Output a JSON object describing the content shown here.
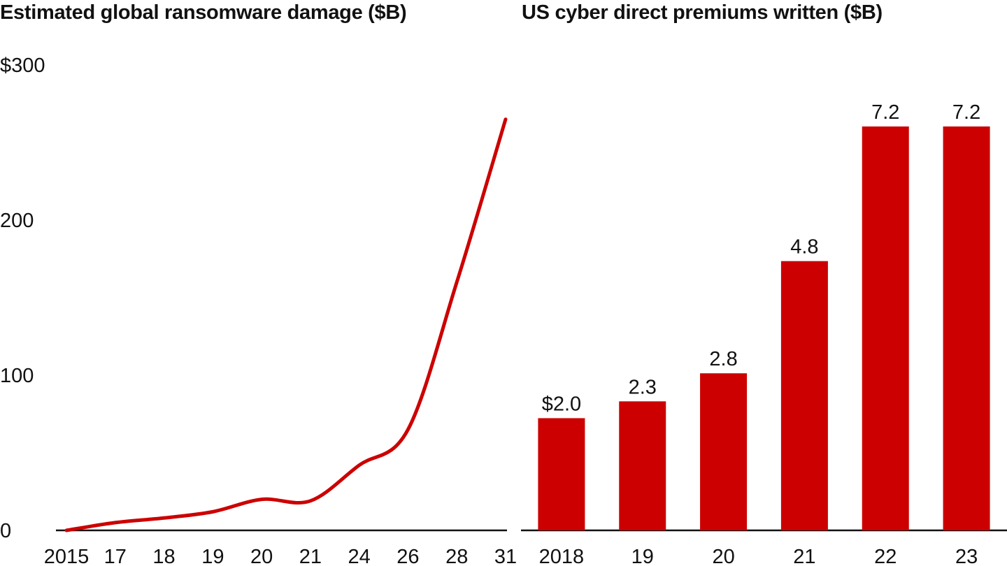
{
  "chart_data": [
    {
      "type": "line",
      "title": "Estimated global ransomware damage ($B)",
      "x": [
        "2015",
        "17",
        "18",
        "19",
        "20",
        "21",
        "24",
        "26",
        "28",
        "31"
      ],
      "values": [
        0,
        5,
        8,
        12,
        20,
        19,
        42,
        65,
        160,
        265
      ],
      "ylim": [
        0,
        300
      ],
      "yticks": [
        {
          "value": 0,
          "label": "0"
        },
        {
          "value": 100,
          "label": "100"
        },
        {
          "value": 200,
          "label": "200"
        },
        {
          "value": 300,
          "label": "$300"
        }
      ],
      "grid": false,
      "color": "#cc0000"
    },
    {
      "type": "bar",
      "title": "US cyber direct premiums written ($B)",
      "categories": [
        "2018",
        "19",
        "20",
        "21",
        "22",
        "23"
      ],
      "values": [
        2.0,
        2.3,
        2.8,
        4.8,
        7.2,
        7.2
      ],
      "data_labels": [
        "$2.0",
        "2.3",
        "2.8",
        "4.8",
        "7.2",
        "7.2"
      ],
      "grid": false,
      "color": "#cc0000"
    }
  ]
}
